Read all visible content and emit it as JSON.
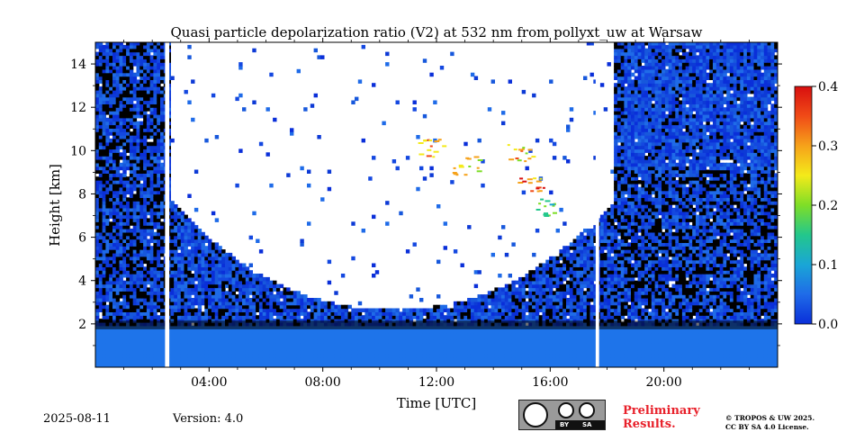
{
  "chart_data": {
    "type": "heatmap",
    "title": "Quasi particle depolarization ratio (V2) at 532 nm from pollyxt_uw at Warsaw",
    "xlabel": "Time [UTC]",
    "ylabel": "Height [km]",
    "xlim_hours": [
      0,
      24
    ],
    "ylim_km": [
      0,
      15
    ],
    "x_ticks": [
      {
        "hour": 4,
        "label": "04:00"
      },
      {
        "hour": 8,
        "label": "08:00"
      },
      {
        "hour": 12,
        "label": "12:00"
      },
      {
        "hour": 16,
        "label": "16:00"
      },
      {
        "hour": 20,
        "label": "20:00"
      }
    ],
    "y_ticks": [
      {
        "value": 2,
        "label": "2"
      },
      {
        "value": 4,
        "label": "4"
      },
      {
        "value": 6,
        "label": "6"
      },
      {
        "value": 8,
        "label": "8"
      },
      {
        "value": 10,
        "label": "10"
      },
      {
        "value": 12,
        "label": "12"
      },
      {
        "value": 14,
        "label": "14"
      }
    ],
    "colorbar": {
      "min": 0.0,
      "max": 0.4,
      "ticks": [
        {
          "value": 0.0,
          "label": "0.0"
        },
        {
          "value": 0.1,
          "label": "0.1"
        },
        {
          "value": 0.2,
          "label": "0.2"
        },
        {
          "value": 0.3,
          "label": "0.3"
        },
        {
          "value": 0.4,
          "label": "0.4"
        }
      ],
      "colormap": [
        "#0a2fd9",
        "#1f6be8",
        "#1aa6d6",
        "#23c78c",
        "#7ede27",
        "#f4ea1a",
        "#f6a21a",
        "#f04b17",
        "#d80f0f"
      ]
    },
    "data_gaps_hours": [
      [
        2.45,
        2.6
      ],
      [
        17.6,
        17.72
      ]
    ],
    "cloud_free_window_hours": [
      2.6,
      18.2
    ],
    "depol_hotspots": [
      {
        "hour": 11.8,
        "height_km": 10.1,
        "value": 0.35
      },
      {
        "hour": 13.0,
        "height_km": 9.3,
        "value": 0.3
      },
      {
        "hour": 14.9,
        "height_km": 9.9,
        "value": 0.32
      },
      {
        "hour": 15.3,
        "height_km": 8.4,
        "value": 0.38
      },
      {
        "hour": 15.7,
        "height_km": 7.4,
        "value": 0.2
      }
    ]
  },
  "footer": {
    "date": "2025-08-11",
    "version": "Version: 4.0",
    "preliminary_line1": "Preliminary",
    "preliminary_line2": "Results.",
    "copyright_line1": "© TROPOS & UW 2025.",
    "copyright_line2": "CC BY SA 4.0 License.",
    "badge_by": "BY",
    "badge_sa": "SA"
  }
}
